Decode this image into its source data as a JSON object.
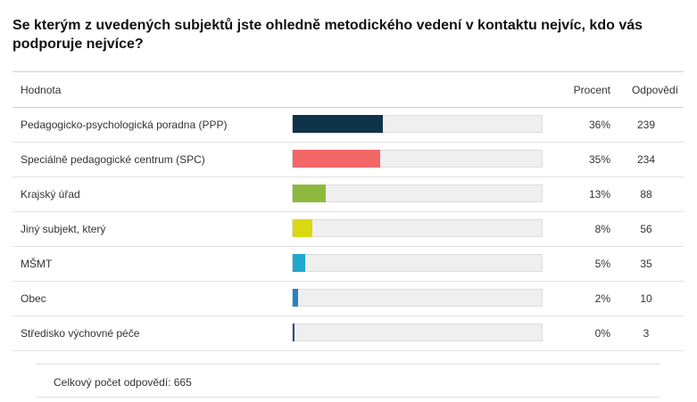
{
  "question": "Se kterým z uvedených subjektů jste ohledně metodického vedení v kontaktu nejvíc, kdo vás podporuje nejvíce?",
  "table": {
    "headers": {
      "value": "Hodnota",
      "percent": "Procent",
      "count": "Odpovědí"
    },
    "rows": [
      {
        "label": "Pedagogicko-psychologická poradna (PPP)",
        "percent": "36%",
        "count": "239",
        "fraction": 0.36,
        "color": "#0f3349"
      },
      {
        "label": "Speciálně pedagogické centrum (SPC)",
        "percent": "35%",
        "count": "234",
        "fraction": 0.35,
        "color": "#f26666"
      },
      {
        "label": "Krajský úřad",
        "percent": "13%",
        "count": "88",
        "fraction": 0.13,
        "color": "#8fb83e"
      },
      {
        "label": "Jiný subjekt, který",
        "percent": "8%",
        "count": "56",
        "fraction": 0.08,
        "color": "#d9d912"
      },
      {
        "label": "MŠMT",
        "percent": "5%",
        "count": "35",
        "fraction": 0.05,
        "color": "#1fa7cf"
      },
      {
        "label": "Obec",
        "percent": "2%",
        "count": "10",
        "fraction": 0.02,
        "color": "#2a83c2"
      },
      {
        "label": "Středisko výchovné péče",
        "percent": "0%",
        "count": "3",
        "fraction": 0.005,
        "color": "#2d4a8a"
      }
    ]
  },
  "footer": {
    "total_label": "Celkový počet odpovědí: 665"
  }
}
